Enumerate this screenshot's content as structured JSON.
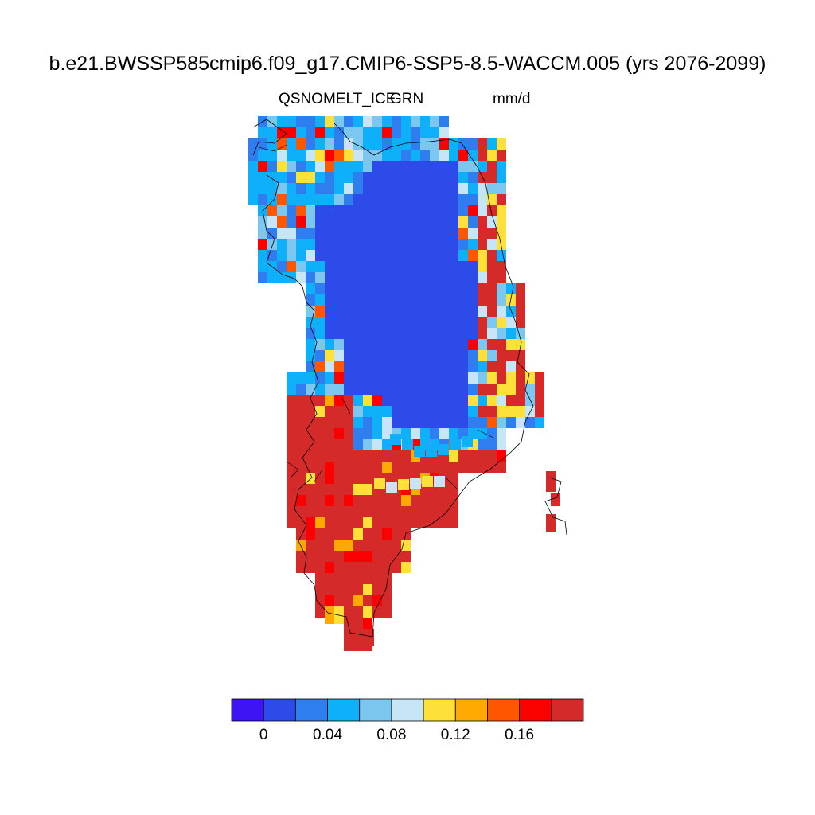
{
  "header": {
    "title": "b.e21.BWSSP585cmip6.f09_g17.CMIP6-SSP5-8.5-WACCM.005 (yrs 2076-2099)",
    "variable": "QSNOMELT_ICE",
    "region": "GRN",
    "units": "mm/d"
  },
  "colorbar": {
    "colors": [
      "#3f14f2",
      "#2c4be8",
      "#2f7ef0",
      "#0db0f9",
      "#7cc7ef",
      "#c6e6f8",
      "#fee03a",
      "#fea900",
      "#fe5700",
      "#fa0000",
      "#d42a2a"
    ],
    "tick_labels": [
      "0",
      "0.04",
      "0.08",
      "0.12",
      "0.16"
    ]
  },
  "map": {
    "type": "gridded-field",
    "region_shape": "Greenland",
    "value_range": [
      -0.02,
      0.2
    ]
  }
}
